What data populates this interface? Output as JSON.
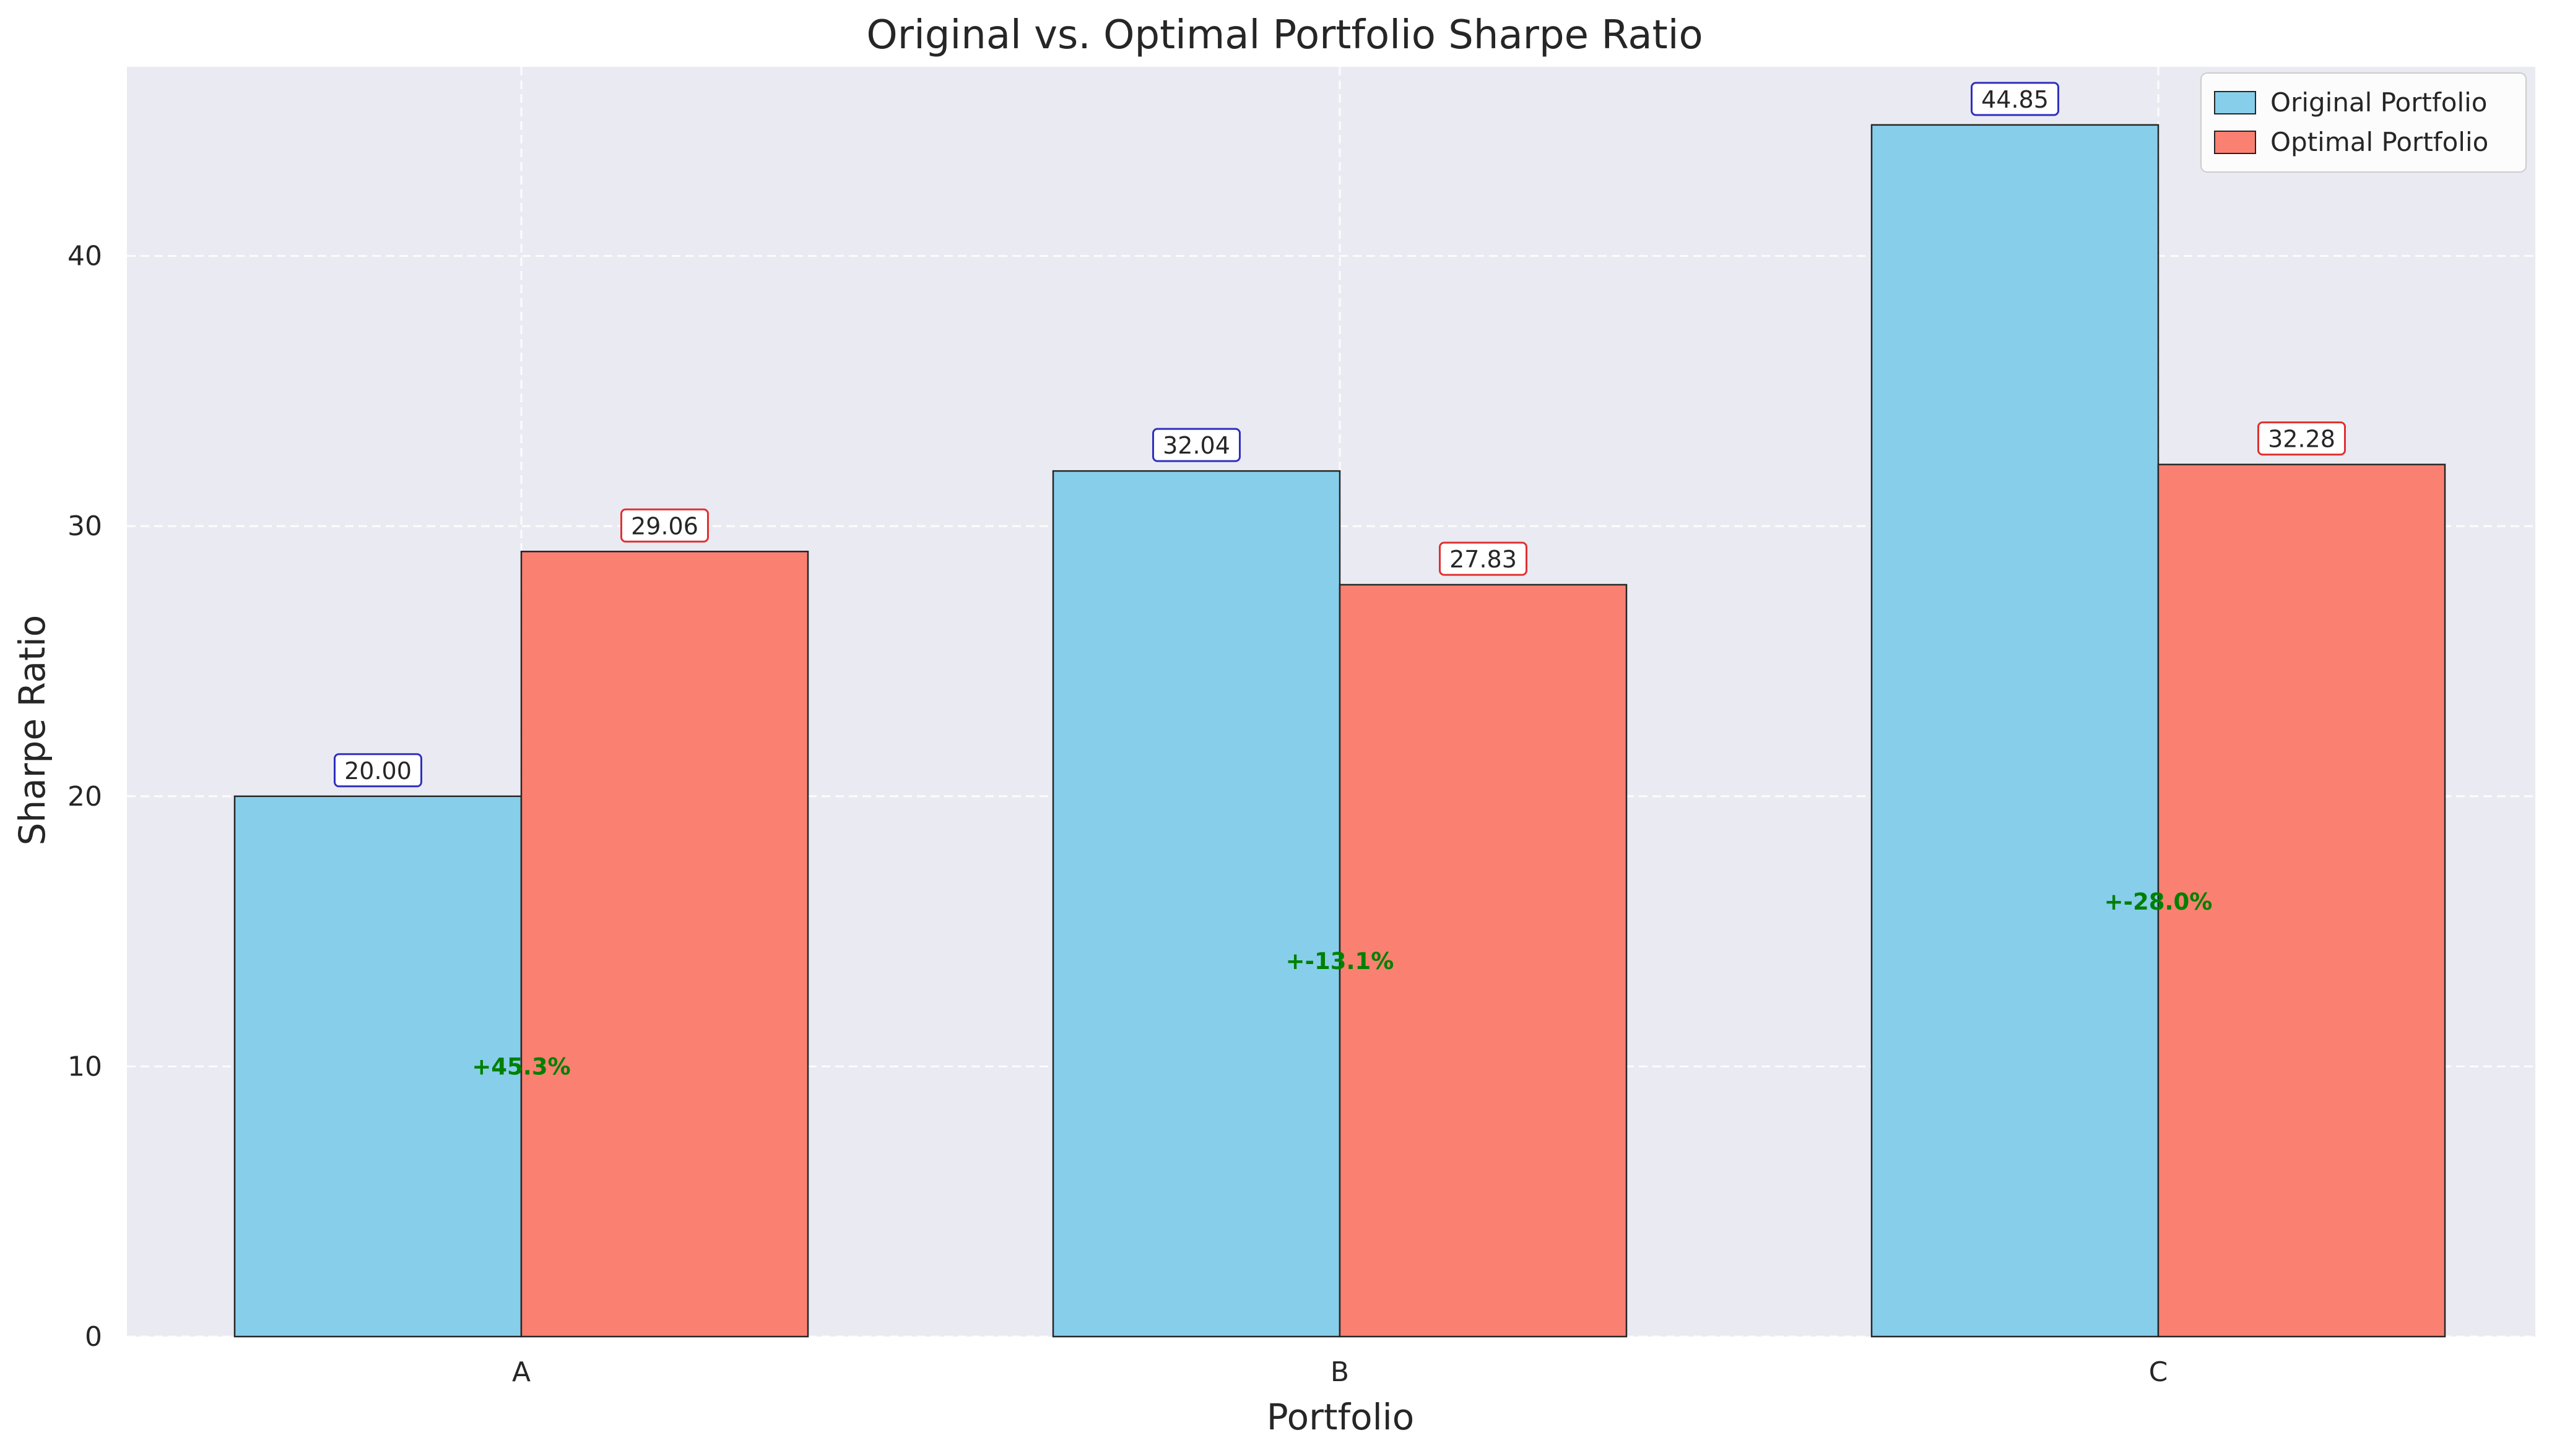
{
  "chart_data": {
    "type": "bar",
    "title": "Original vs. Optimal Portfolio Sharpe Ratio",
    "xlabel": "Portfolio",
    "ylabel": "Sharpe Ratio",
    "categories": [
      "A",
      "B",
      "C"
    ],
    "ylim": [
      0,
      47
    ],
    "yticks": [
      0,
      10,
      20,
      30,
      40
    ],
    "grid": true,
    "legend_position": "top-right",
    "series": [
      {
        "name": "Original Portfolio",
        "values": [
          20.0,
          32.04,
          44.85
        ],
        "labels": [
          "20.00",
          "32.04",
          "44.85"
        ],
        "color": "#87CEEB",
        "label_border": "#2F2FBF"
      },
      {
        "name": "Optimal Portfolio",
        "values": [
          29.06,
          27.83,
          32.28
        ],
        "labels": [
          "29.06",
          "27.83",
          "32.28"
        ],
        "color": "#FA8072",
        "label_border": "#E03030"
      }
    ],
    "annotations": [
      {
        "category": "A",
        "text": "+45.3%",
        "y": 10.0
      },
      {
        "category": "B",
        "text": "+-13.1%",
        "y": 13.9
      },
      {
        "category": "C",
        "text": "+-28.0%",
        "y": 16.1
      }
    ],
    "annotation_color": "#008000",
    "plot_background": "#EAEAF2",
    "grid_color": "#FFFFFF"
  }
}
